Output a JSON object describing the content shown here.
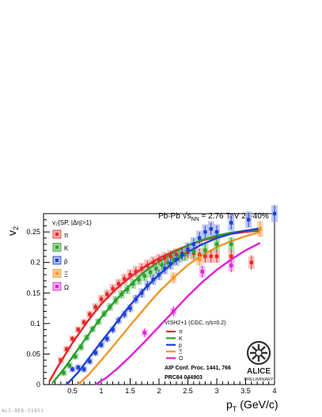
{
  "page": {
    "footer_id": "ALI-DER-55851"
  },
  "chart_data": {
    "type": "scatter",
    "title": "Pb-Pb √s NN = 2.76 TeV 20-40%",
    "title_parts": {
      "prefix": "Pb-Pb ",
      "sqrt": "√",
      "s": "s",
      "sub": "NN",
      "suffix": " = 2.76 TeV 20-40%"
    },
    "xlabel": "p",
    "xlabel_sub": "T",
    "xlabel_unit": "(GeV/c)",
    "ylabel": "v",
    "ylabel_sub": "2",
    "xlim": [
      0,
      4
    ],
    "ylim": [
      0,
      0.28
    ],
    "x_ticks": [
      0.5,
      1,
      1.5,
      2,
      2.5,
      3,
      3.5,
      4
    ],
    "x_tick_labels": [
      "0.5",
      "1",
      "1.5",
      "2",
      "2.5",
      "3",
      "3.5",
      "4"
    ],
    "y_ticks": [
      0,
      0.05,
      0.1,
      0.15,
      0.2,
      0.25
    ],
    "y_tick_labels": [
      "0",
      "0.05",
      "0.1",
      "0.15",
      "0.2",
      "0.25"
    ],
    "grid": false,
    "legend_data_title": "v₂{SP, |Δη|>1}",
    "legend_model_title": "VISH2+1 (CGC, η/s=0.2)",
    "reference_lines": [
      "AIP Conf. Proc. 1441, 766",
      "PRC84 044903"
    ],
    "logo_text": [
      "ALICE",
      "PRELIMINARY"
    ],
    "series": [
      {
        "name": "π",
        "color": "#e8262a",
        "box": "#f3b0aa",
        "points": [
          [
            0.3,
            0.04
          ],
          [
            0.4,
            0.058
          ],
          [
            0.5,
            0.075
          ],
          [
            0.6,
            0.09
          ],
          [
            0.7,
            0.102
          ],
          [
            0.8,
            0.115
          ],
          [
            0.9,
            0.127
          ],
          [
            1.0,
            0.14
          ],
          [
            1.1,
            0.148
          ],
          [
            1.2,
            0.157
          ],
          [
            1.3,
            0.165
          ],
          [
            1.4,
            0.173
          ],
          [
            1.5,
            0.18
          ],
          [
            1.6,
            0.185
          ],
          [
            1.7,
            0.19
          ],
          [
            1.8,
            0.195
          ],
          [
            1.9,
            0.2
          ],
          [
            2.0,
            0.204
          ],
          [
            2.1,
            0.207
          ],
          [
            2.2,
            0.21
          ],
          [
            2.3,
            0.213
          ],
          [
            2.4,
            0.215
          ],
          [
            2.5,
            0.217
          ],
          [
            2.6,
            0.215
          ],
          [
            2.7,
            0.213
          ],
          [
            2.8,
            0.21
          ],
          [
            2.9,
            0.21
          ],
          [
            3.0,
            0.21
          ],
          [
            3.25,
            0.21
          ],
          [
            3.6,
            0.2
          ]
        ]
      },
      {
        "name": "K",
        "color": "#2aa12a",
        "box": "#9dd49d",
        "points": [
          [
            0.35,
            0.019
          ],
          [
            0.45,
            0.031
          ],
          [
            0.55,
            0.046
          ],
          [
            0.65,
            0.061
          ],
          [
            0.75,
            0.077
          ],
          [
            0.85,
            0.091
          ],
          [
            0.95,
            0.103
          ],
          [
            1.05,
            0.116
          ],
          [
            1.15,
            0.127
          ],
          [
            1.25,
            0.138
          ],
          [
            1.35,
            0.148
          ],
          [
            1.45,
            0.156
          ],
          [
            1.55,
            0.165
          ],
          [
            1.65,
            0.172
          ],
          [
            1.75,
            0.178
          ],
          [
            1.85,
            0.184
          ],
          [
            1.95,
            0.19
          ],
          [
            2.05,
            0.196
          ],
          [
            2.15,
            0.2
          ],
          [
            2.25,
            0.205
          ],
          [
            2.35,
            0.21
          ],
          [
            2.45,
            0.213
          ],
          [
            2.6,
            0.218
          ],
          [
            2.8,
            0.22
          ],
          [
            3.0,
            0.23
          ],
          [
            3.25,
            0.23
          ]
        ]
      },
      {
        "name": "p̄",
        "color": "#1f3fd6",
        "box": "#a9b6ee",
        "points": [
          [
            0.5,
            0.025
          ],
          [
            0.6,
            0.028
          ],
          [
            0.7,
            0.025
          ],
          [
            0.8,
            0.038
          ],
          [
            0.9,
            0.052
          ],
          [
            1.0,
            0.065
          ],
          [
            1.1,
            0.075
          ],
          [
            1.2,
            0.09
          ],
          [
            1.3,
            0.105
          ],
          [
            1.4,
            0.115
          ],
          [
            1.5,
            0.125
          ],
          [
            1.6,
            0.14
          ],
          [
            1.7,
            0.15
          ],
          [
            1.8,
            0.162
          ],
          [
            1.9,
            0.172
          ],
          [
            2.0,
            0.18
          ],
          [
            2.1,
            0.19
          ],
          [
            2.2,
            0.198
          ],
          [
            2.3,
            0.205
          ],
          [
            2.4,
            0.213
          ],
          [
            2.5,
            0.222
          ],
          [
            2.6,
            0.23
          ],
          [
            2.7,
            0.24
          ],
          [
            2.8,
            0.25
          ],
          [
            2.9,
            0.255
          ],
          [
            3.0,
            0.25
          ],
          [
            3.25,
            0.265
          ],
          [
            3.55,
            0.27
          ],
          [
            4.0,
            0.28
          ]
        ]
      },
      {
        "name": "Ξ",
        "color": "#f2962a",
        "box": "#f8c99a",
        "points": [
          [
            2.25,
            0.175
          ],
          [
            2.7,
            0.205
          ],
          [
            3.75,
            0.255
          ]
        ]
      },
      {
        "name": "Ω",
        "color": "#e020d8",
        "box": "#f0a9ec",
        "points": [
          [
            1.75,
            0.085
          ],
          [
            2.25,
            0.12
          ],
          [
            2.75,
            0.185
          ],
          [
            3.25,
            0.195
          ]
        ]
      }
    ],
    "model_curves": [
      {
        "name": "π",
        "color": "#e8262a",
        "points": [
          [
            0.1,
            0.005
          ],
          [
            0.25,
            0.03
          ],
          [
            0.5,
            0.068
          ],
          [
            0.75,
            0.102
          ],
          [
            1.0,
            0.132
          ],
          [
            1.25,
            0.156
          ],
          [
            1.5,
            0.176
          ],
          [
            1.75,
            0.193
          ],
          [
            2.0,
            0.207
          ],
          [
            2.25,
            0.218
          ],
          [
            2.5,
            0.228
          ],
          [
            2.75,
            0.236
          ],
          [
            3.0,
            0.242
          ],
          [
            3.25,
            0.247
          ],
          [
            3.5,
            0.25
          ],
          [
            3.75,
            0.252
          ]
        ]
      },
      {
        "name": "K",
        "color": "#2aa12a",
        "points": [
          [
            0.15,
            0.002
          ],
          [
            0.35,
            0.025
          ],
          [
            0.5,
            0.045
          ],
          [
            0.75,
            0.078
          ],
          [
            1.0,
            0.11
          ],
          [
            1.25,
            0.138
          ],
          [
            1.5,
            0.163
          ],
          [
            1.75,
            0.185
          ],
          [
            2.0,
            0.202
          ],
          [
            2.25,
            0.216
          ],
          [
            2.5,
            0.228
          ],
          [
            2.75,
            0.237
          ],
          [
            3.0,
            0.244
          ],
          [
            3.25,
            0.249
          ],
          [
            3.5,
            0.252
          ],
          [
            3.75,
            0.254
          ]
        ]
      },
      {
        "name": "p",
        "color": "#1f3fd6",
        "points": [
          [
            0.4,
            0.0
          ],
          [
            0.6,
            0.02
          ],
          [
            0.8,
            0.045
          ],
          [
            1.0,
            0.07
          ],
          [
            1.25,
            0.1
          ],
          [
            1.5,
            0.13
          ],
          [
            1.75,
            0.157
          ],
          [
            2.0,
            0.18
          ],
          [
            2.25,
            0.2
          ],
          [
            2.5,
            0.217
          ],
          [
            2.75,
            0.23
          ],
          [
            3.0,
            0.24
          ],
          [
            3.25,
            0.247
          ],
          [
            3.5,
            0.252
          ],
          [
            3.75,
            0.256
          ]
        ]
      },
      {
        "name": "Ξ",
        "color": "#f2962a",
        "points": [
          [
            0.6,
            0.0
          ],
          [
            0.8,
            0.018
          ],
          [
            1.0,
            0.04
          ],
          [
            1.25,
            0.068
          ],
          [
            1.5,
            0.097
          ],
          [
            1.75,
            0.125
          ],
          [
            2.0,
            0.152
          ],
          [
            2.25,
            0.175
          ],
          [
            2.5,
            0.196
          ],
          [
            2.75,
            0.212
          ],
          [
            3.0,
            0.225
          ],
          [
            3.25,
            0.235
          ],
          [
            3.5,
            0.243
          ],
          [
            3.75,
            0.25
          ]
        ]
      },
      {
        "name": "Ω",
        "color": "#e020d8",
        "points": [
          [
            0.9,
            0.0
          ],
          [
            1.1,
            0.012
          ],
          [
            1.3,
            0.028
          ],
          [
            1.5,
            0.046
          ],
          [
            1.75,
            0.07
          ],
          [
            2.0,
            0.095
          ],
          [
            2.25,
            0.12
          ],
          [
            2.5,
            0.145
          ],
          [
            2.75,
            0.168
          ],
          [
            3.0,
            0.188
          ],
          [
            3.25,
            0.205
          ],
          [
            3.5,
            0.22
          ],
          [
            3.75,
            0.232
          ]
        ]
      }
    ]
  }
}
